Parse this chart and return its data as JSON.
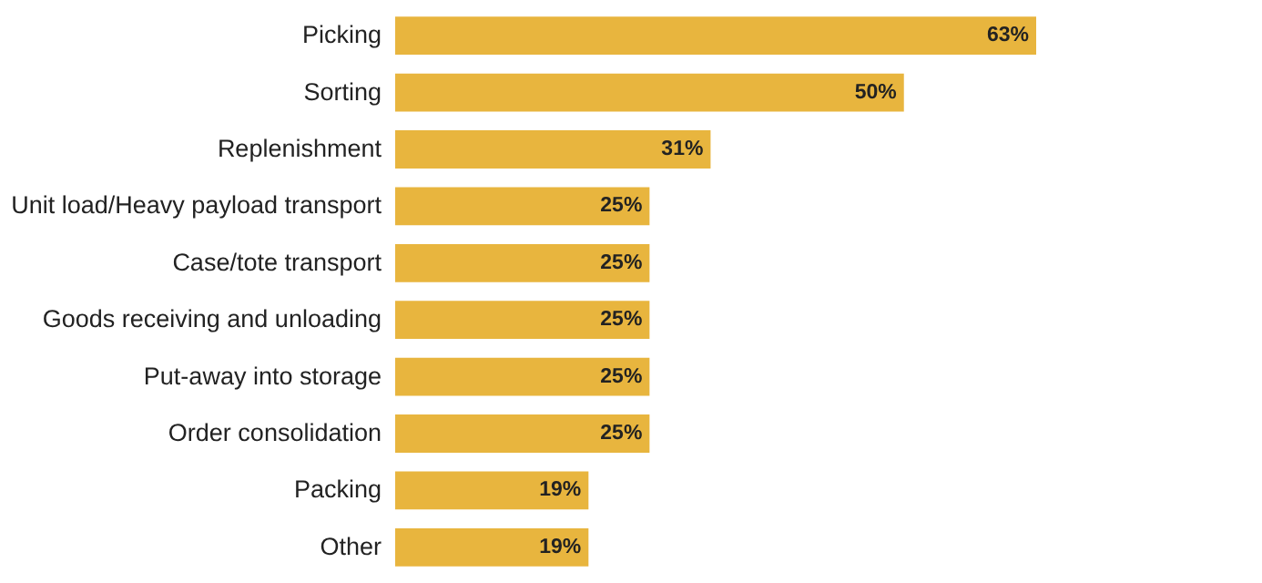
{
  "chart_data": {
    "type": "bar",
    "orientation": "horizontal",
    "categories": [
      "Picking",
      "Sorting",
      "Replenishment",
      "Unit load/Heavy payload transport",
      "Case/tote transport",
      "Goods receiving and unloading",
      "Put-away into storage",
      "Order consolidation",
      "Packing",
      "Other"
    ],
    "values": [
      63,
      50,
      31,
      25,
      25,
      25,
      25,
      25,
      19,
      19
    ],
    "value_labels": [
      "63%",
      "50%",
      "31%",
      "25%",
      "25%",
      "25%",
      "25%",
      "25%",
      "19%",
      "19%"
    ],
    "color": "#e8b53e"
  }
}
